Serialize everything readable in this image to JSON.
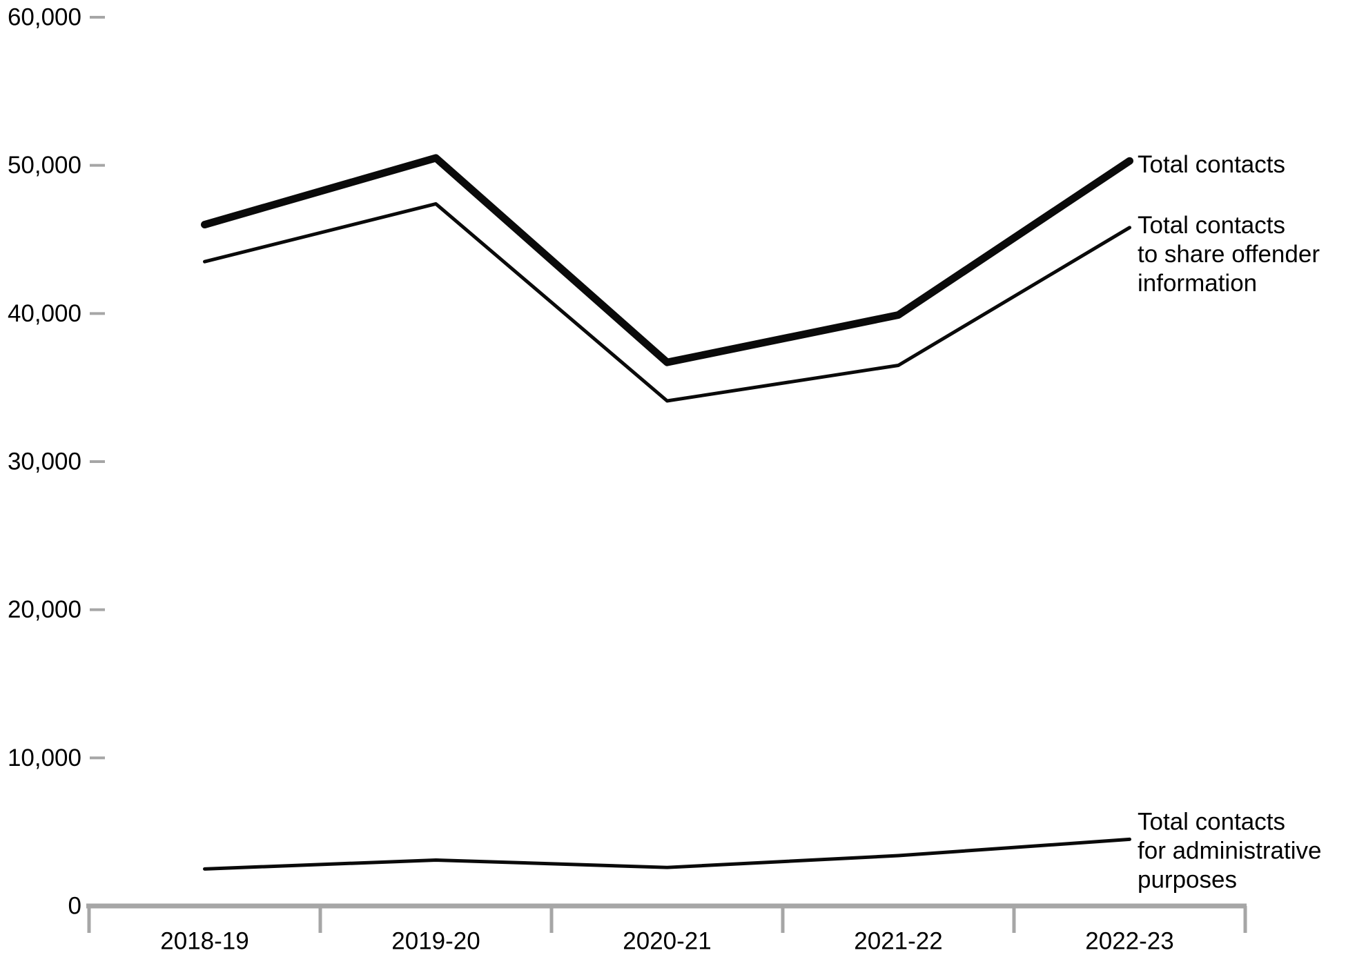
{
  "chart_data": {
    "type": "line",
    "title": "",
    "xlabel": "",
    "ylabel": "",
    "categories": [
      "2018-19",
      "2019-20",
      "2020-21",
      "2021-22",
      "2022-23"
    ],
    "series": [
      {
        "name": "Total contacts",
        "values": [
          46000,
          50500,
          36700,
          39900,
          50300
        ],
        "label_lines": [
          "Total contacts"
        ]
      },
      {
        "name": "Total contacts to share offender information",
        "values": [
          43500,
          47400,
          34100,
          36500,
          45800
        ],
        "label_lines": [
          "Total contacts",
          "to share offender",
          "information"
        ]
      },
      {
        "name": "Total contacts for administrative purposes",
        "values": [
          2500,
          3100,
          2600,
          3400,
          4500
        ],
        "label_lines": [
          "Total contacts",
          "for administrative",
          "purposes"
        ]
      }
    ],
    "ylim": [
      0,
      60000
    ],
    "yticks": [
      0,
      10000,
      20000,
      30000,
      40000,
      50000,
      60000
    ],
    "ytick_labels": [
      "0",
      "10,000",
      "20,000",
      "30,000",
      "40,000",
      "50,000",
      "60,000"
    ],
    "grid": false,
    "legend_position": "right-annotations",
    "colors": {
      "line": "#0a0a0a",
      "axis": "#a6a6a6",
      "text": "#000000"
    }
  }
}
